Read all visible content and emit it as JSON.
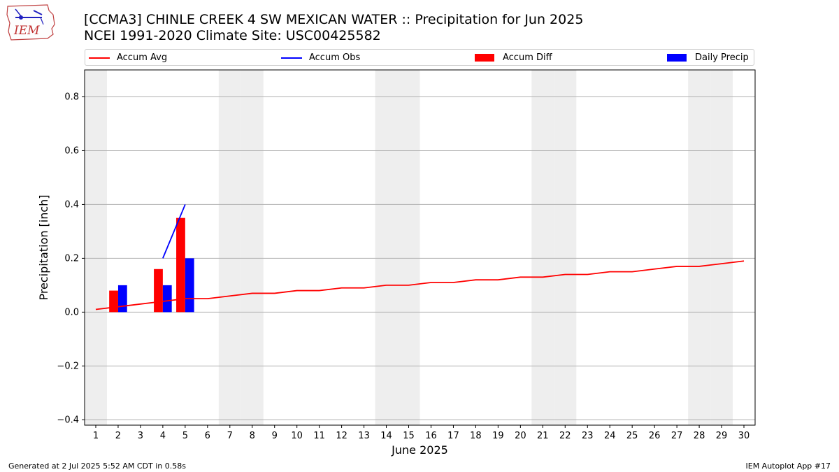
{
  "header": {
    "title_line1": "[CCMA3] CHINLE CREEK 4 SW MEXICAN WATER :: Precipitation for Jun 2025",
    "title_line2": "NCEI 1991-2020 Climate Site: USC00425582",
    "logo_text": "IEM"
  },
  "footer": {
    "generated": "Generated at 2 Jul 2025 5:52 AM CDT in 0.58s",
    "app": "IEM Autoplot App #17"
  },
  "colors": {
    "accum_avg": "#ff0000",
    "accum_obs": "#0000ff",
    "accum_diff": "#ff0000",
    "daily_precip": "#0000ff",
    "weekend_shade": "#eeeeee",
    "grid": "#b0b0b0"
  },
  "chart_data": {
    "type": "bar",
    "title": "[CCMA3] CHINLE CREEK 4 SW MEXICAN WATER :: Precipitation for Jun 2025",
    "subtitle": "NCEI 1991-2020 Climate Site: USC00425582",
    "xlabel": "June 2025",
    "ylabel": "Precipitation [inch]",
    "ylim": [
      -0.42,
      0.9
    ],
    "xlim": [
      0.5,
      30.5
    ],
    "yticks": [
      -0.4,
      -0.2,
      0.0,
      0.2,
      0.4,
      0.6,
      0.8
    ],
    "ytick_labels": [
      "−0.4",
      "−0.2",
      "0.0",
      "0.2",
      "0.4",
      "0.6",
      "0.8"
    ],
    "xticks": [
      1,
      2,
      3,
      4,
      5,
      6,
      7,
      8,
      9,
      10,
      11,
      12,
      13,
      14,
      15,
      16,
      17,
      18,
      19,
      20,
      21,
      22,
      23,
      24,
      25,
      26,
      27,
      28,
      29,
      30
    ],
    "grid": "horizontal",
    "legend": "top, above plot",
    "shaded_days": [
      1,
      7,
      8,
      14,
      15,
      21,
      22,
      28,
      29
    ],
    "series": [
      {
        "name": "Accum Avg",
        "type": "line",
        "x": [
          1,
          2,
          3,
          4,
          5,
          6,
          7,
          8,
          9,
          10,
          11,
          12,
          13,
          14,
          15,
          16,
          17,
          18,
          19,
          20,
          21,
          22,
          23,
          24,
          25,
          26,
          27,
          28,
          29,
          30
        ],
        "values": [
          0.01,
          0.02,
          0.03,
          0.04,
          0.05,
          0.05,
          0.06,
          0.07,
          0.07,
          0.08,
          0.08,
          0.09,
          0.09,
          0.1,
          0.1,
          0.11,
          0.11,
          0.12,
          0.12,
          0.13,
          0.13,
          0.14,
          0.14,
          0.15,
          0.15,
          0.16,
          0.17,
          0.17,
          0.18,
          0.19
        ]
      },
      {
        "name": "Accum Obs",
        "type": "line",
        "x": [
          4,
          5
        ],
        "values": [
          0.2,
          0.4
        ]
      },
      {
        "name": "Accum Diff",
        "type": "bar",
        "x": [
          2,
          4,
          5
        ],
        "values": [
          0.08,
          0.16,
          0.35
        ]
      },
      {
        "name": "Daily Precip",
        "type": "bar",
        "x": [
          2,
          4,
          5
        ],
        "values": [
          0.1,
          0.1,
          0.2
        ]
      }
    ]
  }
}
